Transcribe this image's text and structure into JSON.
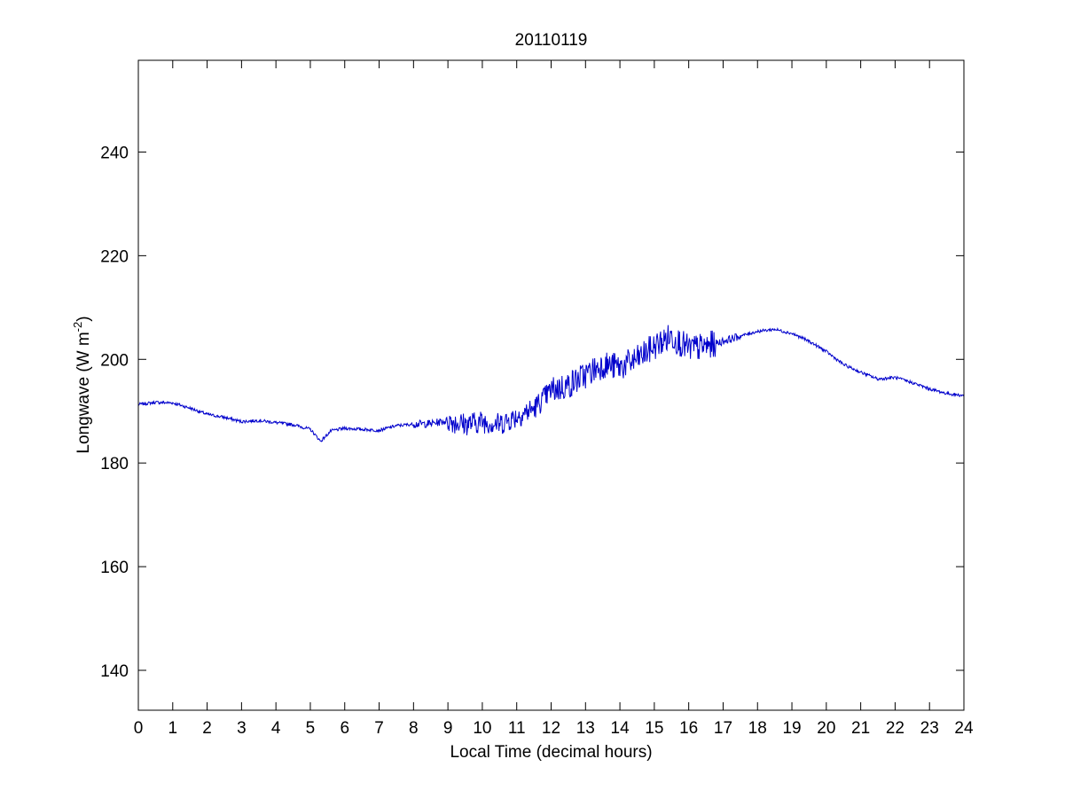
{
  "chart_data": {
    "type": "line",
    "title": "20110119",
    "xlabel": "Local Time (decimal hours)",
    "ylabel": {
      "text": "Longwave (W m",
      "superscript": "-2",
      "suffix": ")"
    },
    "xlim": [
      0,
      24
    ],
    "ylim": [
      132.3,
      257.7
    ],
    "xticks": [
      0,
      1,
      2,
      3,
      4,
      5,
      6,
      7,
      8,
      9,
      10,
      11,
      12,
      13,
      14,
      15,
      16,
      17,
      18,
      19,
      20,
      21,
      22,
      23,
      24
    ],
    "yticks": [
      140,
      160,
      180,
      200,
      220,
      240
    ],
    "grid": false,
    "line_color": "#0000cc",
    "series": [
      {
        "x": [
          0,
          0.5,
          1,
          1.5,
          2,
          2.5,
          3,
          3.5,
          4,
          4.5,
          5,
          5.3,
          5.6,
          6,
          6.5,
          7,
          7.5,
          8,
          8.5,
          9,
          9.5,
          10,
          10.5,
          11,
          11.5,
          12,
          12.5,
          13,
          13.5,
          14,
          14.5,
          15,
          15.5,
          16,
          16.5,
          17,
          17.5,
          18,
          18.5,
          19,
          19.5,
          20,
          20.5,
          21,
          21.5,
          22,
          22.5,
          23,
          23.5,
          24
        ],
        "values": [
          191.3,
          191.7,
          191.6,
          190.6,
          189.4,
          188.8,
          188.0,
          188.2,
          187.8,
          187.4,
          186.5,
          184.2,
          186.2,
          186.7,
          186.5,
          186.3,
          187.2,
          187.5,
          187.6,
          188.2,
          187.5,
          188.0,
          187.5,
          189.0,
          190.5,
          194.0,
          195.0,
          197.0,
          199.0,
          198.5,
          200.0,
          202.5,
          204.5,
          202.0,
          202.5,
          203.5,
          204.5,
          205.4,
          205.8,
          205.0,
          203.5,
          201.5,
          199.0,
          197.5,
          196.2,
          196.5,
          195.5,
          194.3,
          193.4,
          193.0
        ]
      }
    ]
  }
}
